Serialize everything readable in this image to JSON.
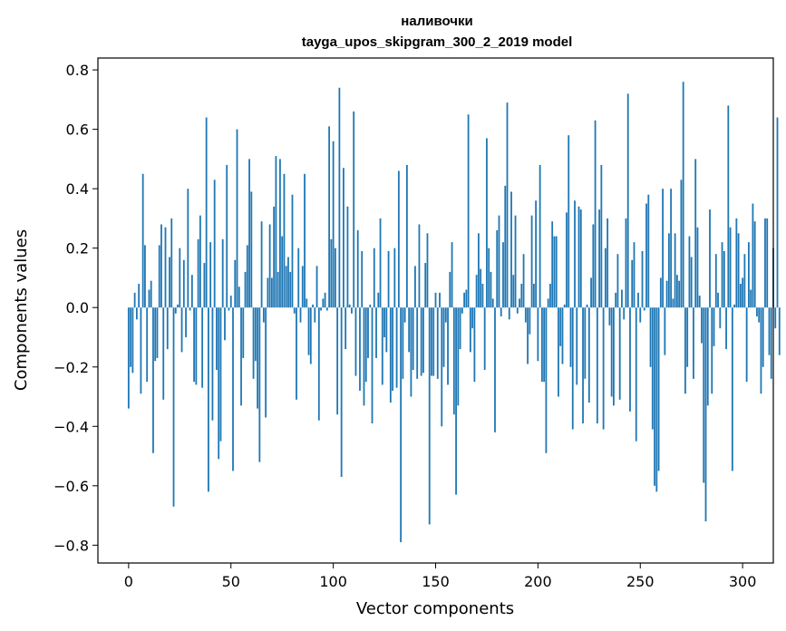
{
  "chart_data": {
    "type": "bar",
    "title_line1": "наливочки",
    "title_line2": "tayga_upos_skipgram_300_2_2019 model",
    "xlabel": "Vector components",
    "ylabel": "Components values",
    "xlim": [
      -15,
      315
    ],
    "ylim": [
      -0.86,
      0.84
    ],
    "xticks": [
      0,
      50,
      100,
      150,
      200,
      250,
      300
    ],
    "yticks": [
      -0.8,
      -0.6,
      -0.4,
      -0.2,
      0.0,
      0.2,
      0.4,
      0.6,
      0.8
    ],
    "ytick_labels": [
      "−0.8",
      "−0.6",
      "−0.4",
      "−0.2",
      "0.0",
      "0.2",
      "0.4",
      "0.6",
      "0.8"
    ],
    "bar_color": "#1f77b4",
    "values": [
      -0.34,
      -0.2,
      -0.22,
      0.05,
      -0.04,
      0.08,
      -0.29,
      0.45,
      0.21,
      -0.25,
      0.06,
      0.09,
      -0.49,
      -0.18,
      -0.17,
      0.21,
      0.28,
      -0.31,
      0.27,
      -0.14,
      0.17,
      0.3,
      -0.67,
      -0.02,
      0.01,
      0.2,
      -0.15,
      0.16,
      -0.1,
      0.4,
      -0.01,
      0.11,
      -0.25,
      -0.26,
      0.23,
      0.31,
      -0.27,
      0.15,
      0.64,
      -0.62,
      0.22,
      -0.38,
      0.43,
      -0.21,
      -0.51,
      -0.45,
      0.23,
      -0.11,
      0.48,
      -0.01,
      0.04,
      -0.55,
      0.16,
      0.6,
      0.07,
      -0.33,
      -0.17,
      0.12,
      0.21,
      0.5,
      0.39,
      -0.24,
      -0.18,
      -0.34,
      -0.52,
      0.29,
      -0.05,
      -0.37,
      0.1,
      0.28,
      0.1,
      0.34,
      0.51,
      0.12,
      0.5,
      0.24,
      0.45,
      0.14,
      0.17,
      0.12,
      0.38,
      -0.02,
      -0.31,
      0.2,
      -0.05,
      0.14,
      0.45,
      0.03,
      -0.16,
      -0.19,
      0.01,
      -0.05,
      0.14,
      -0.38,
      -0.01,
      0.03,
      0.05,
      -0.01,
      0.61,
      0.23,
      0.56,
      0.2,
      -0.36,
      0.74,
      -0.57,
      0.47,
      -0.14,
      0.34,
      0.01,
      -0.02,
      0.66,
      -0.23,
      0.26,
      -0.28,
      0.19,
      -0.33,
      -0.25,
      -0.17,
      0.01,
      -0.39,
      0.2,
      -0.17,
      0.05,
      0.3,
      -0.26,
      -0.1,
      -0.15,
      0.19,
      -0.32,
      -0.28,
      0.2,
      -0.27,
      0.46,
      -0.79,
      -0.24,
      -0.05,
      0.48,
      -0.15,
      -0.3,
      -0.21,
      0.14,
      -0.24,
      0.28,
      -0.23,
      -0.22,
      0.15,
      0.25,
      -0.73,
      -0.23,
      -0.23,
      0.05,
      -0.24,
      0.05,
      -0.4,
      -0.2,
      -0.05,
      -0.26,
      0.12,
      0.22,
      -0.36,
      -0.63,
      -0.33,
      -0.14,
      -0.02,
      0.05,
      0.06,
      0.65,
      -0.15,
      -0.07,
      -0.25,
      0.11,
      0.25,
      0.13,
      0.08,
      -0.21,
      0.57,
      0.2,
      0.12,
      0.03,
      -0.42,
      0.26,
      0.31,
      -0.03,
      0.22,
      0.41,
      0.69,
      -0.04,
      0.39,
      0.11,
      0.31,
      -0.02,
      0.03,
      0.08,
      0.18,
      -0.05,
      -0.19,
      -0.09,
      0.31,
      0.08,
      0.36,
      -0.18,
      0.48,
      -0.25,
      -0.25,
      -0.49,
      0.03,
      0.08,
      0.29,
      0.24,
      0.24,
      -0.3,
      -0.13,
      -0.19,
      0.01,
      0.32,
      0.58,
      -0.2,
      -0.41,
      0.36,
      -0.26,
      0.34,
      0.33,
      -0.39,
      -0.24,
      0.01,
      -0.32,
      0.1,
      0.28,
      0.63,
      -0.39,
      0.33,
      0.48,
      -0.41,
      0.2,
      0.3,
      -0.06,
      -0.3,
      -0.33,
      0.05,
      0.18,
      -0.31,
      0.06,
      -0.04,
      0.3,
      0.72,
      -0.35,
      0.16,
      0.22,
      -0.45,
      0.05,
      -0.05,
      0.19,
      -0.01,
      0.35,
      0.38,
      -0.2,
      -0.41,
      -0.6,
      -0.62,
      -0.55,
      0.1,
      0.4,
      -0.16,
      0.09,
      0.25,
      0.4,
      0.03,
      0.25,
      0.11,
      0.09,
      0.43,
      0.76,
      -0.29,
      -0.2,
      0.24,
      0.17,
      -0.24,
      0.5,
      0.27,
      0.04,
      -0.12,
      -0.59,
      -0.72,
      -0.33,
      0.33,
      -0.29,
      -0.13,
      0.18,
      0.05,
      -0.07,
      0.22,
      0.19,
      -0.14,
      0.68,
      0.27,
      -0.55,
      0.01,
      0.3,
      0.25,
      0.08,
      0.1,
      0.18,
      -0.25,
      0.22,
      0.06,
      0.35,
      0.29,
      -0.03,
      -0.05,
      -0.29,
      -0.2,
      0.3,
      0.3,
      -0.16,
      -0.24,
      0.2,
      -0.07,
      0.64,
      -0.16
    ]
  }
}
